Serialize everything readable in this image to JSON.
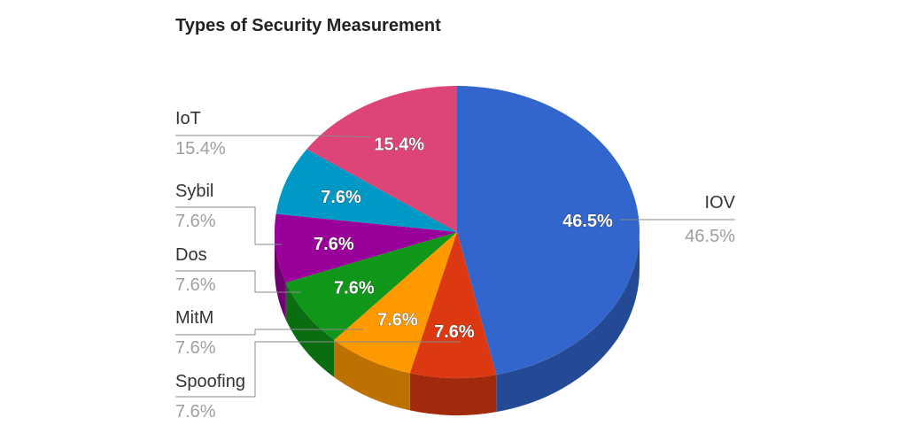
{
  "chart_data": {
    "type": "pie",
    "title": "Types of Security Measurement",
    "three_d": true,
    "legend": "labeled",
    "slices": [
      {
        "name": "IOV",
        "value": 46.5,
        "label": "46.5%",
        "color": "#3366cc",
        "side": "#244a96"
      },
      {
        "name": "Spoofing",
        "value": 7.6,
        "label": "7.6%",
        "color": "#dc3912",
        "side": "#a12a0d"
      },
      {
        "name": "MitM",
        "value": 7.6,
        "label": "7.6%",
        "color": "#ff9900",
        "side": "#bc7100"
      },
      {
        "name": "Dos",
        "value": 7.6,
        "label": "7.6%",
        "color": "#109618",
        "side": "#0b6d11"
      },
      {
        "name": "Sybil",
        "value": 7.6,
        "label": "7.6%",
        "color": "#990099",
        "side": "#700070"
      },
      {
        "name": "7.6%",
        "value": 7.6,
        "label": "7.6%",
        "color": "#0099c6",
        "side": "#007090"
      },
      {
        "name": "IoT",
        "value": 15.4,
        "label": "15.4%",
        "color": "#dd4477",
        "side": "#a33257"
      }
    ],
    "external_labels": [
      {
        "name": "IoT",
        "pct": "15.4%"
      },
      {
        "name": "Sybil",
        "pct": "7.6%"
      },
      {
        "name": "Dos",
        "pct": "7.6%"
      },
      {
        "name": "MitM",
        "pct": "7.6%"
      },
      {
        "name": "Spoofing",
        "pct": "7.6%"
      },
      {
        "name": "IOV",
        "pct": "46.5%"
      }
    ]
  }
}
